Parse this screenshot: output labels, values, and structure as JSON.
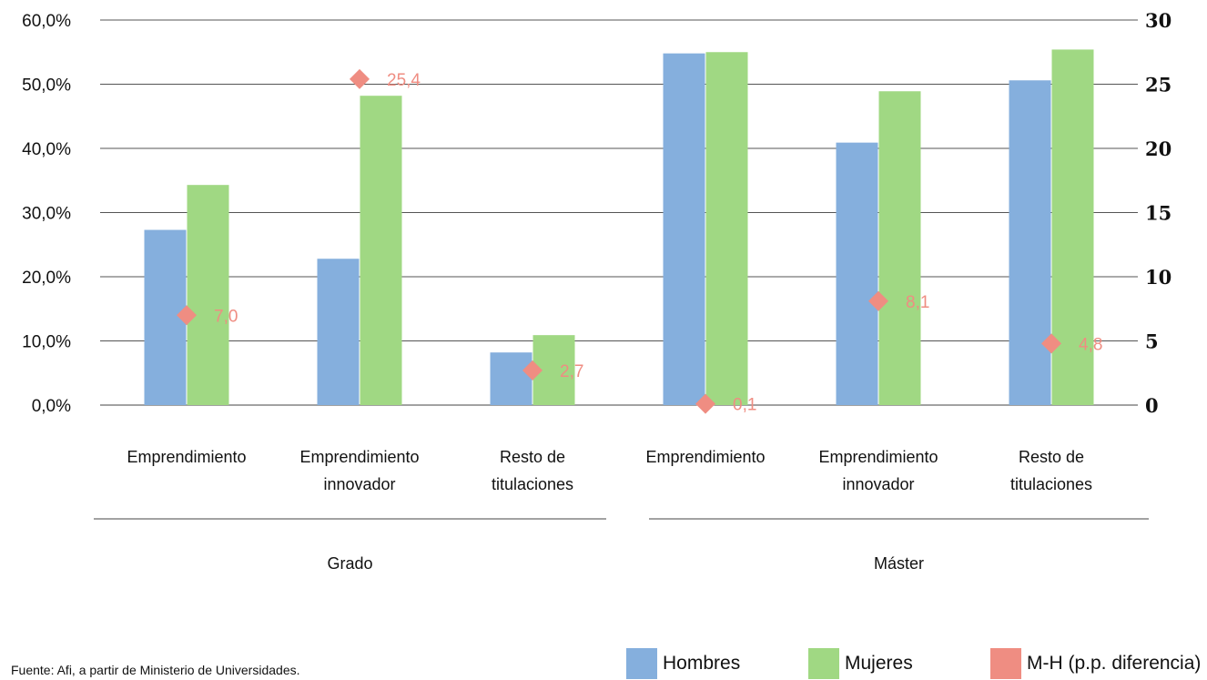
{
  "chart_data": {
    "type": "bar",
    "groups": [
      {
        "label": "Grado",
        "categories": [
          [
            "Emprendimiento"
          ],
          [
            "Emprendimiento",
            "innovador"
          ],
          [
            "Resto de",
            "titulaciones"
          ]
        ]
      },
      {
        "label": "Máster",
        "categories": [
          [
            "Emprendimiento"
          ],
          [
            "Emprendimiento",
            "innovador"
          ],
          [
            "Resto de",
            "titulaciones"
          ]
        ]
      }
    ],
    "series": [
      {
        "name": "Hombres",
        "axis": "left",
        "color": "#85afdd",
        "values": [
          27.3,
          22.8,
          8.2,
          54.8,
          40.9,
          50.6
        ]
      },
      {
        "name": "Mujeres",
        "axis": "left",
        "color": "#a0d883",
        "values": [
          34.3,
          48.2,
          10.9,
          55.0,
          48.9,
          55.4
        ]
      },
      {
        "name": "M-H (p.p. diferencia)",
        "axis": "right",
        "type": "scatter",
        "marker": "diamond",
        "color": "#ef8d82",
        "values": [
          7.0,
          25.4,
          2.7,
          0.1,
          8.1,
          4.8
        ],
        "labels": [
          "7,0",
          "25,4",
          "2,7",
          "0,1",
          "8,1",
          "4,8"
        ]
      }
    ],
    "y_left": {
      "min": 0,
      "max": 60,
      "step": 10,
      "tick_labels": [
        "0,0%",
        "10,0%",
        "20,0%",
        "30,0%",
        "40,0%",
        "50,0%",
        "60,0%"
      ]
    },
    "y_right": {
      "min": 0,
      "max": 30,
      "step": 5,
      "tick_labels": [
        "0",
        "5",
        "10",
        "15",
        "20",
        "25",
        "30"
      ]
    },
    "grid": true,
    "legend_position": "bottom-right"
  },
  "source": "Fuente: Afi, a partir de Ministerio de Universidades."
}
